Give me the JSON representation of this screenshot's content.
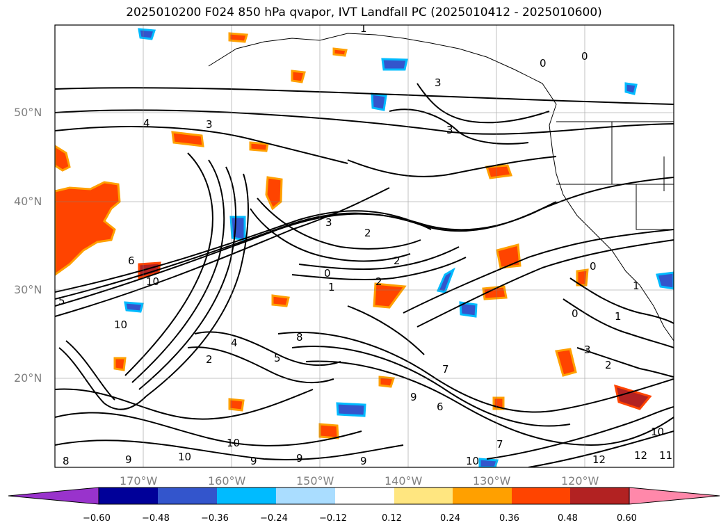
{
  "title": "2025010200 F024 850 hPa qvapor, IVT Landfall PC (2025010412 - 2025010600)",
  "latitude_labels": [
    "50°N",
    "40°N",
    "30°N",
    "20°N"
  ],
  "longitude_labels": [
    "170°W",
    "160°W",
    "150°W",
    "140°W",
    "130°W",
    "120°W"
  ],
  "colorbar": {
    "ticks": [
      "−0.60",
      "−0.48",
      "−0.36",
      "−0.24",
      "−0.12",
      "0.12",
      "0.24",
      "0.36",
      "0.48",
      "0.60"
    ],
    "colors": [
      "#9933cc",
      "#000099",
      "#3355cc",
      "#00bbff",
      "#aaddff",
      "#ffffff",
      "#ffe680",
      "#ffa000",
      "#ff4400",
      "#b22222",
      "#ff88aa"
    ]
  },
  "contour_labels": [
    "1",
    "0",
    "3",
    "4",
    "3",
    "3",
    "2",
    "0",
    "1",
    "2",
    "2",
    "10",
    "5",
    "10",
    "6",
    "0",
    "2",
    "1",
    "3",
    "2",
    "4",
    "5",
    "8",
    "9",
    "7",
    "9",
    "6",
    "10",
    "9",
    "12",
    "11",
    "10",
    "7",
    "10",
    "12",
    "8",
    "9",
    "9",
    "10",
    "0",
    "1",
    "0",
    "3"
  ]
}
